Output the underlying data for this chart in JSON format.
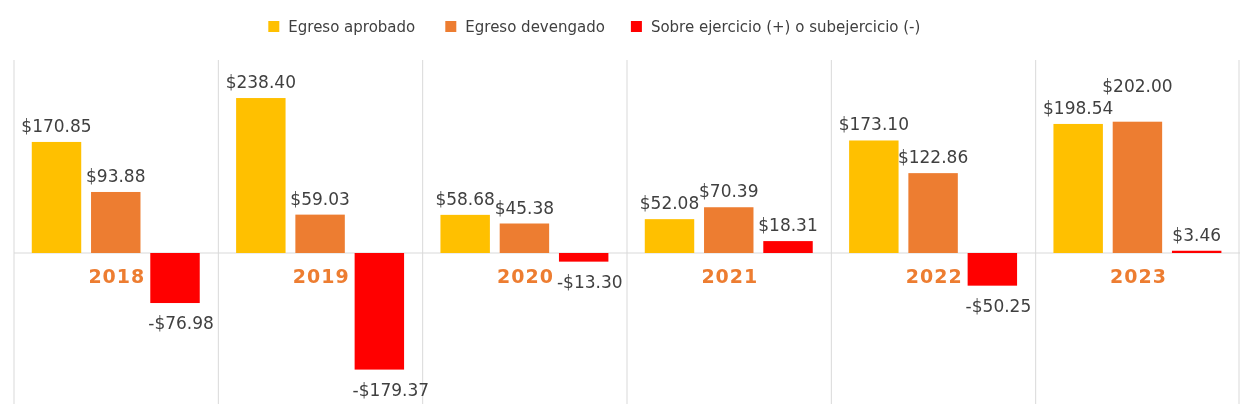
{
  "chart_data": {
    "type": "bar",
    "categories": [
      "2018",
      "2019",
      "2020",
      "2021",
      "2022",
      "2023"
    ],
    "series": [
      {
        "name": "Egreso aprobado",
        "color": "#ffc000",
        "values": [
          170.85,
          238.4,
          58.68,
          52.08,
          173.1,
          198.54
        ],
        "value_labels": [
          "$170.85",
          "$238.40",
          "$58.68",
          "$52.08",
          "$173.10",
          "$198.54"
        ]
      },
      {
        "name": "Egreso devengado",
        "color": "#ed7d31",
        "values": [
          93.88,
          59.03,
          45.38,
          70.39,
          122.86,
          202.0
        ],
        "value_labels": [
          "$93.88",
          "$59.03",
          "$45.38",
          "$70.39",
          "$122.86",
          "$202.00"
        ]
      },
      {
        "name": "Sobre ejercicio (+) o subejercicio (-)",
        "color": "#ff0000",
        "values": [
          -76.98,
          -179.37,
          -13.3,
          18.31,
          -50.25,
          3.46
        ],
        "value_labels": [
          "-$76.98",
          "-$179.37",
          "-$13.30",
          "$18.31",
          "-$50.25",
          "$3.46"
        ]
      }
    ],
    "legend": "top"
  }
}
